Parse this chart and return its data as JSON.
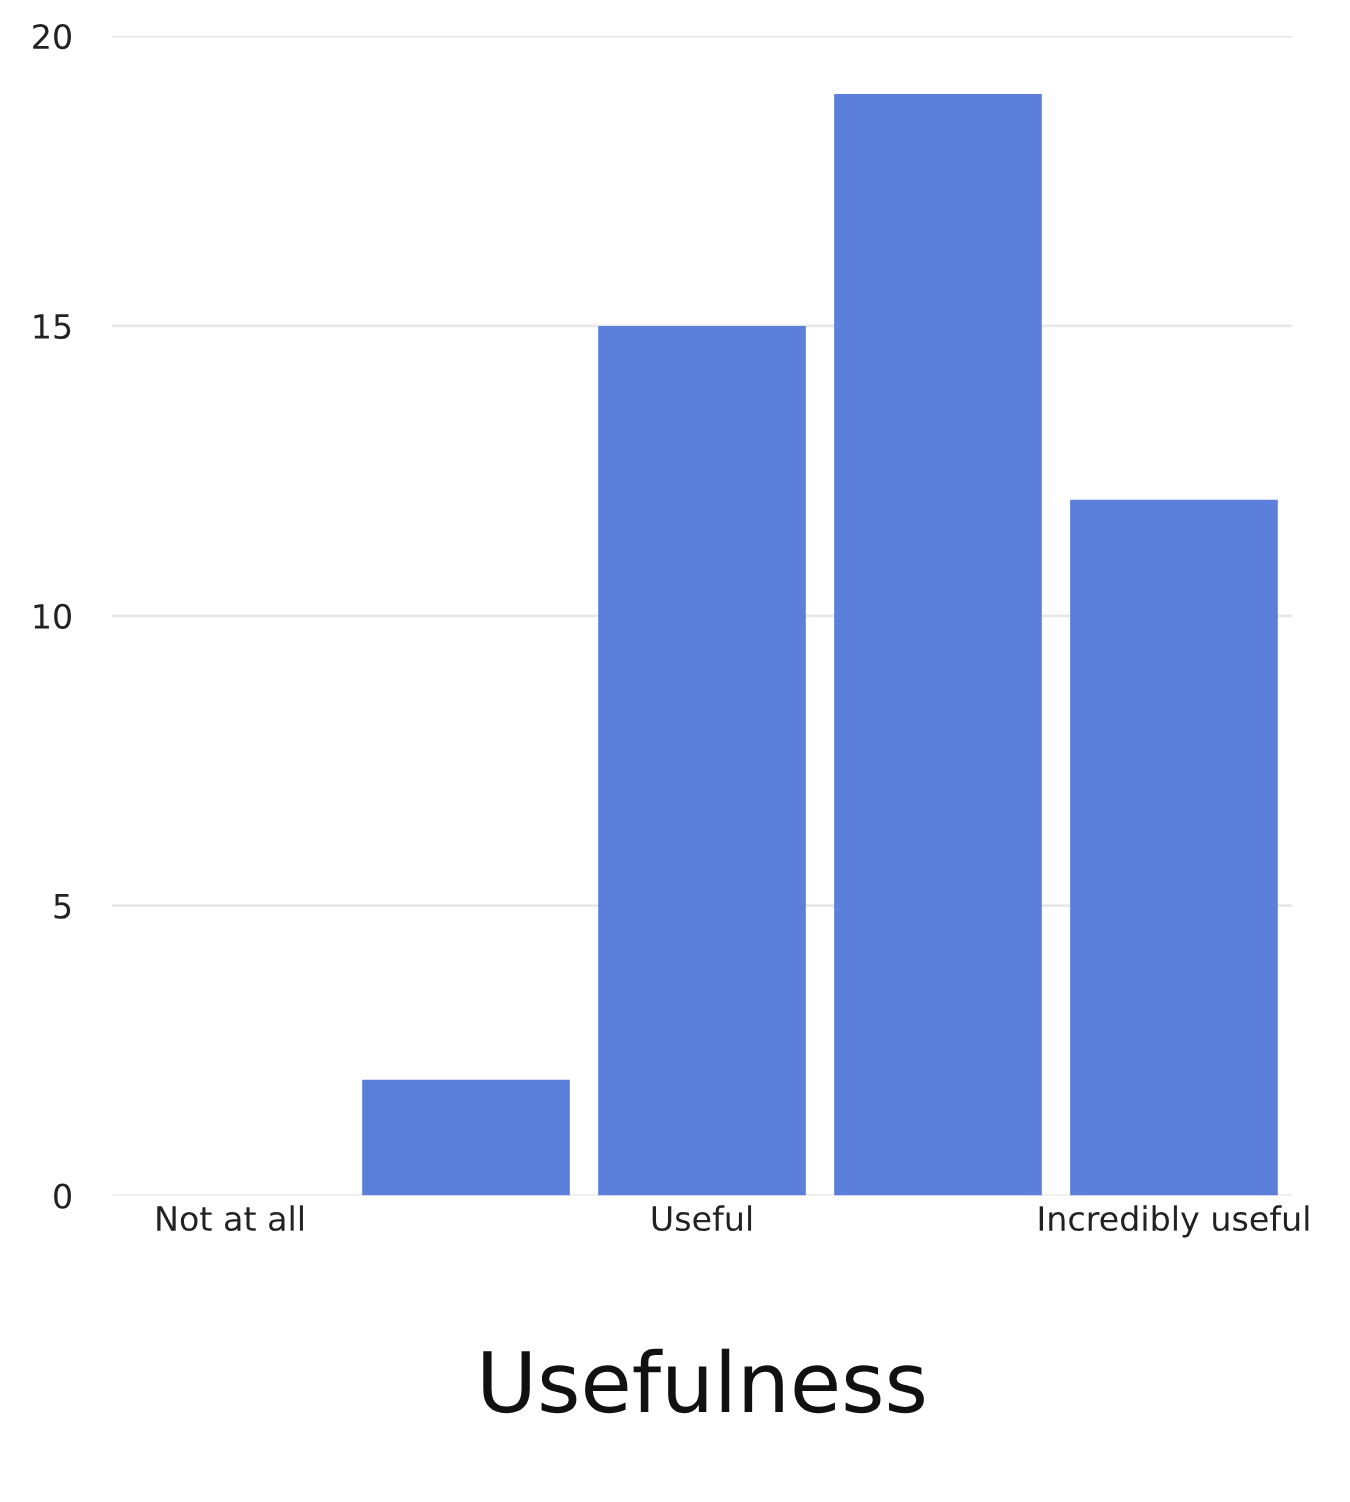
{
  "chart_data": {
    "type": "bar",
    "xlabel": "Usefulness",
    "categories": [
      "Not at all",
      null,
      "Useful",
      null,
      "Incredibly useful"
    ],
    "values": [
      0,
      2,
      15,
      19,
      12
    ],
    "color": "#5b7fdb",
    "ylim": [
      0,
      20
    ],
    "yticks": [
      0,
      5,
      10,
      15,
      20
    ],
    "grid": "y"
  }
}
